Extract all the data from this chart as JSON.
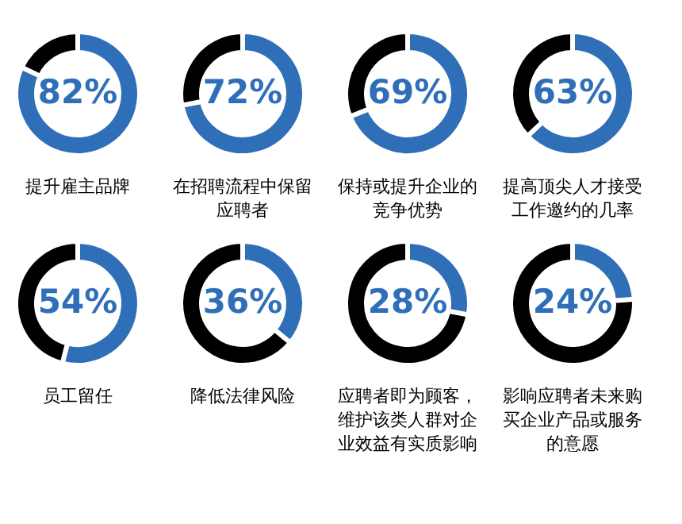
{
  "chart_data": [
    {
      "type": "donut",
      "title": "提升雇主品牌",
      "categories": [
        null,
        null
      ],
      "values": [
        82,
        18
      ],
      "colors": [
        "#2f6fb8",
        "#000000"
      ],
      "value_labels": [
        "82%",
        null
      ]
    },
    {
      "type": "donut",
      "title": "在招聘流程中保留应聘者",
      "categories": [
        null,
        null
      ],
      "values": [
        72,
        28
      ],
      "colors": [
        "#2f6fb8",
        "#000000"
      ],
      "value_labels": [
        "72%",
        null
      ]
    },
    {
      "type": "donut",
      "title": "保持或提升企业的竞争优势",
      "categories": [
        null,
        null
      ],
      "values": [
        69,
        31
      ],
      "colors": [
        "#2f6fb8",
        "#000000"
      ],
      "value_labels": [
        "69%",
        null
      ]
    },
    {
      "type": "donut",
      "title": "提高顶尖人才接受工作邀约的几率",
      "categories": [
        null,
        null
      ],
      "values": [
        63,
        37
      ],
      "colors": [
        "#2f6fb8",
        "#000000"
      ],
      "value_labels": [
        "63%",
        null
      ]
    },
    {
      "type": "donut",
      "title": "员工留任",
      "categories": [
        null,
        null
      ],
      "values": [
        54,
        46
      ],
      "colors": [
        "#2f6fb8",
        "#000000"
      ],
      "value_labels": [
        "54%",
        null
      ]
    },
    {
      "type": "donut",
      "title": "降低法律风险",
      "categories": [
        null,
        null
      ],
      "values": [
        36,
        64
      ],
      "colors": [
        "#2f6fb8",
        "#000000"
      ],
      "value_labels": [
        "36%",
        null
      ]
    },
    {
      "type": "donut",
      "title": "应聘者即为顾客，维护该类人群对企业效益有实质影响",
      "categories": [
        null,
        null
      ],
      "values": [
        28,
        72
      ],
      "colors": [
        "#2f6fb8",
        "#000000"
      ],
      "value_labels": [
        "28%",
        null
      ]
    },
    {
      "type": "donut",
      "title": "影响应聘者未来购买企业产品或服务的意愿",
      "categories": [
        null,
        null
      ],
      "values": [
        24,
        76
      ],
      "colors": [
        "#2f6fb8",
        "#000000"
      ],
      "value_labels": [
        "24%",
        null
      ]
    }
  ]
}
